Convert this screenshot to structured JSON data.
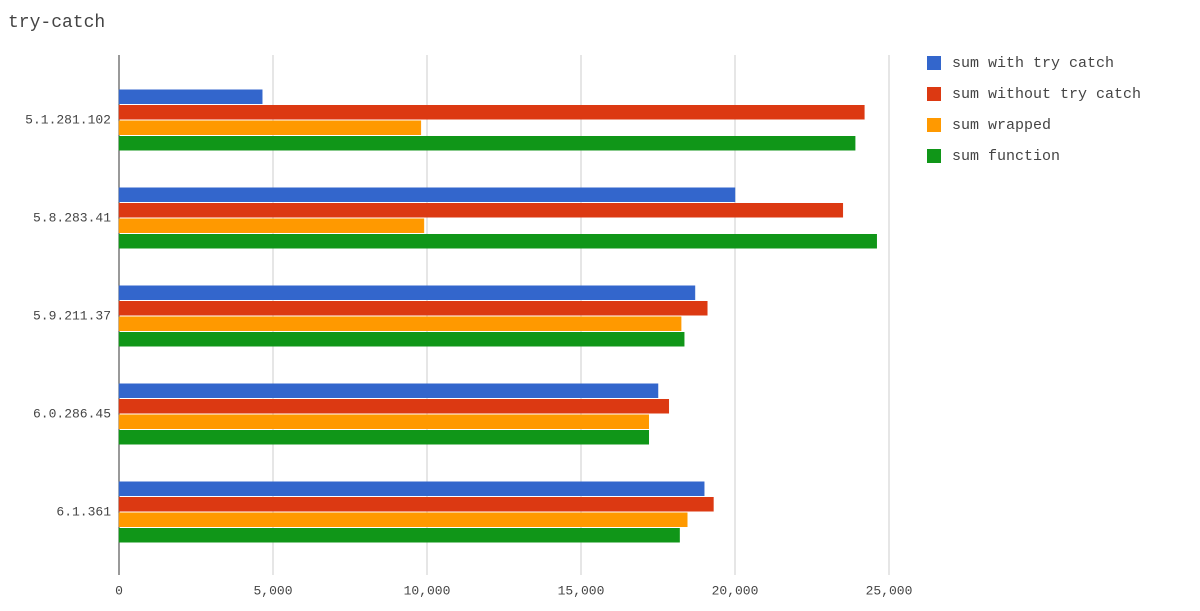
{
  "chart_data": {
    "type": "bar",
    "orientation": "horizontal",
    "title": "try-catch",
    "categories": [
      "5.1.281.102",
      "5.8.283.41",
      "5.9.211.37",
      "6.0.286.45",
      "6.1.361"
    ],
    "series": [
      {
        "name": "sum with try catch",
        "color": "#3366cc",
        "values": [
          4650,
          20000,
          18700,
          17500,
          19000
        ]
      },
      {
        "name": "sum without try catch",
        "color": "#dc3912",
        "values": [
          24200,
          23500,
          19100,
          17850,
          19300
        ]
      },
      {
        "name": "sum wrapped",
        "color": "#ff9900",
        "values": [
          9800,
          9900,
          18250,
          17200,
          18450
        ]
      },
      {
        "name": "sum function",
        "color": "#109618",
        "values": [
          23900,
          24600,
          18350,
          17200,
          18200
        ]
      }
    ],
    "xlim": [
      0,
      25000
    ],
    "xticks": [
      0,
      {
        "value": 5000,
        "label": "5,000"
      },
      {
        "value": 10000,
        "label": "10,000"
      },
      {
        "value": 15000,
        "label": "15,000"
      },
      {
        "value": 20000,
        "label": "20,000"
      },
      {
        "value": 25000,
        "label": "25,000"
      }
    ],
    "grid": true,
    "legend": "right"
  }
}
